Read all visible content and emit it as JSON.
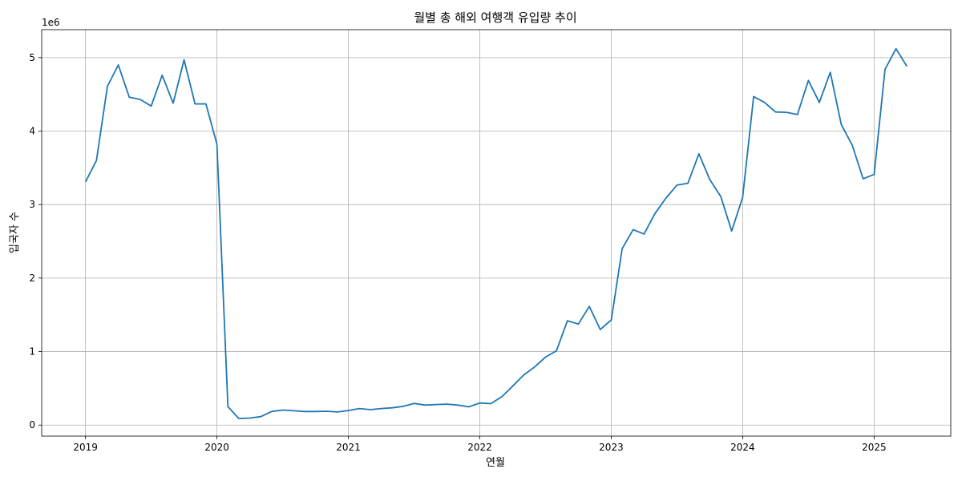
{
  "chart_data": {
    "type": "line",
    "title": "월별 총 해외 여행객 유입량 추이",
    "xlabel": "연월",
    "ylabel": "입국자 수",
    "y_offset_label": "1e6",
    "grid": true,
    "x_ticks": [
      "2019",
      "2020",
      "2021",
      "2022",
      "2023",
      "2024",
      "2025"
    ],
    "y_ticks": [
      "0",
      "1",
      "2",
      "3",
      "4",
      "5"
    ],
    "xlim": [
      "2018-09",
      "2025-08"
    ],
    "ylim": [
      -150000,
      5380000
    ],
    "line_color": "#1f77b4",
    "series": [
      {
        "x": [
          "2019-01",
          "2019-02",
          "2019-03",
          "2019-04",
          "2019-05",
          "2019-06",
          "2019-07",
          "2019-08",
          "2019-09",
          "2019-10",
          "2019-11",
          "2019-12",
          "2020-01",
          "2020-02",
          "2020-03",
          "2020-04",
          "2020-05",
          "2020-06",
          "2020-07",
          "2020-08",
          "2020-09",
          "2020-10",
          "2020-11",
          "2020-12",
          "2021-01",
          "2021-02",
          "2021-03",
          "2021-04",
          "2021-05",
          "2021-06",
          "2021-07",
          "2021-08",
          "2021-09",
          "2021-10",
          "2021-11",
          "2021-12",
          "2022-01",
          "2022-02",
          "2022-03",
          "2022-04",
          "2022-05",
          "2022-06",
          "2022-07",
          "2022-08",
          "2022-09",
          "2022-10",
          "2022-11",
          "2022-12",
          "2023-01",
          "2023-02",
          "2023-03",
          "2023-04",
          "2023-05",
          "2023-06",
          "2023-07",
          "2023-08",
          "2023-09",
          "2023-10",
          "2023-11",
          "2023-12",
          "2024-01",
          "2024-02",
          "2024-03",
          "2024-04",
          "2024-05",
          "2024-06",
          "2024-07",
          "2024-08",
          "2024-09",
          "2024-10",
          "2024-11",
          "2024-12",
          "2025-01",
          "2025-02",
          "2025-03",
          "2025-04",
          "2025-05"
        ],
        "values": [
          3310000,
          3600000,
          4610000,
          4900000,
          4460000,
          4430000,
          4340000,
          4760000,
          4380000,
          4970000,
          4370000,
          4370000,
          3820000,
          250000,
          90000,
          95000,
          115000,
          185000,
          205000,
          195000,
          185000,
          185000,
          188000,
          178000,
          198000,
          225000,
          210000,
          225000,
          235000,
          255000,
          295000,
          272000,
          280000,
          285000,
          272000,
          248000,
          300000,
          292000,
          385000,
          530000,
          680000,
          790000,
          925000,
          1010000,
          1420000,
          1375000,
          1615000,
          1300000,
          1430000,
          2400000,
          2660000,
          2600000,
          2880000,
          3090000,
          3265000,
          3290000,
          3690000,
          3340000,
          3110000,
          2640000,
          3100000,
          4470000,
          4390000,
          4260000,
          4255000,
          4225000,
          4690000,
          4390000,
          4800000,
          4090000,
          3810000,
          3350000,
          3410000,
          4840000,
          5120000,
          4880000,
          null
        ]
      }
    ]
  }
}
